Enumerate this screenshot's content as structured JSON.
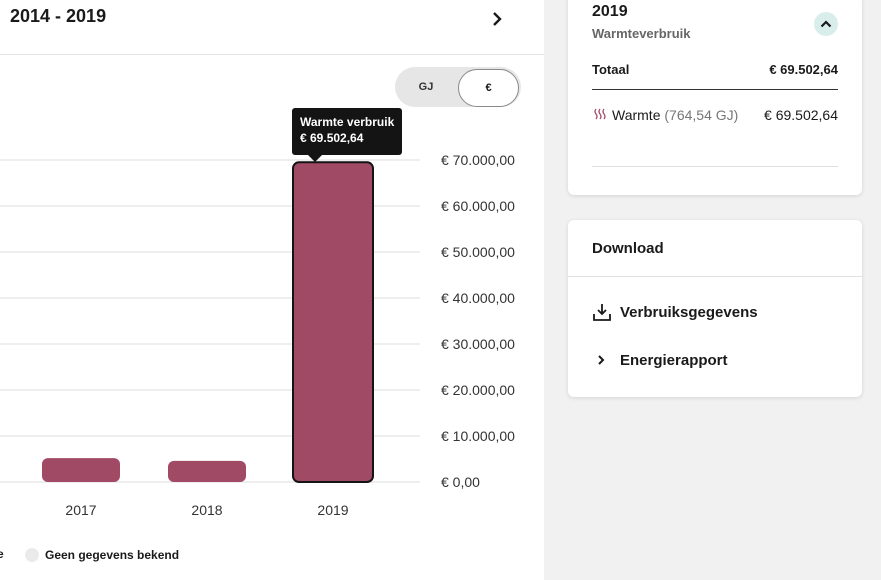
{
  "header": {
    "period": "2014 - 2019"
  },
  "unit_toggle": {
    "options": [
      "GJ",
      "€"
    ],
    "selected": "€"
  },
  "tooltip": {
    "title": "Warmte verbruik",
    "value": "€ 69.502,64"
  },
  "legend": {
    "fragment": "e",
    "no_data_label": "Geen gegevens bekend"
  },
  "chart_data": {
    "type": "bar",
    "categories": [
      "2017",
      "2018",
      "2019"
    ],
    "series": [
      {
        "values": [
          5200,
          4600,
          69502.64
        ]
      }
    ],
    "y_ticks": [
      "€ 0,00",
      "€ 10.000,00",
      "€ 20.000,00",
      "€ 30.000,00",
      "€ 40.000,00",
      "€ 50.000,00",
      "€ 60.000,00",
      "€ 70.000,00"
    ],
    "y_tick_values": [
      0,
      10000,
      20000,
      30000,
      40000,
      50000,
      60000,
      70000
    ],
    "ylim": [
      0,
      70000
    ],
    "bar_color": "#a04a66",
    "selected_index": 2,
    "grid": true,
    "y_axis_side": "right"
  },
  "summary_card": {
    "year": "2019",
    "subtitle": "Warmteverbruik",
    "total_label": "Totaal",
    "total_value": "€ 69.502,64",
    "rows": [
      {
        "icon": "heat-waves-icon",
        "label": "Warmte",
        "detail": "(764,54 GJ)",
        "value": "€ 69.502,64"
      }
    ]
  },
  "download_card": {
    "title": "Download",
    "items": [
      {
        "icon": "download-icon",
        "label": "Verbruiksgegevens"
      },
      {
        "icon": "chevron-right-icon",
        "label": "Energierapport"
      }
    ]
  },
  "colors": {
    "accent": "#a04a66",
    "collapse_bg": "#d9eeea",
    "dark": "#141414"
  }
}
